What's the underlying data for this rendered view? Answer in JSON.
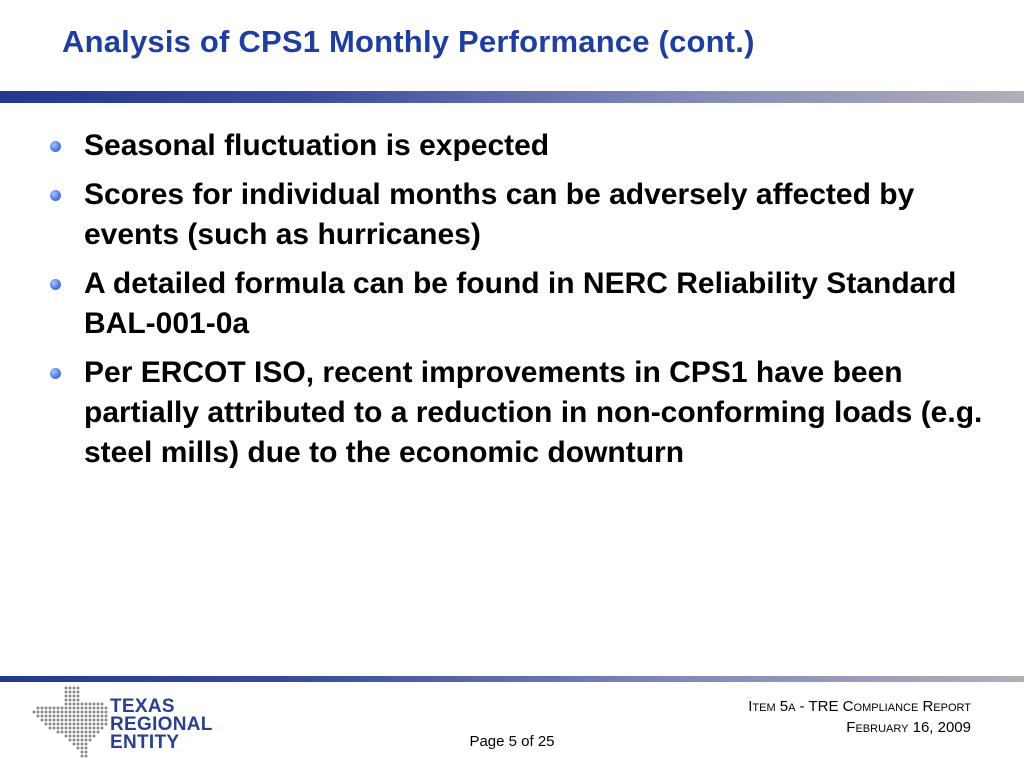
{
  "slide": {
    "title": "Analysis of CPS1 Monthly Performance (cont.)",
    "accent_color": "#1f3fa0",
    "bullet_color": "#4f7be8",
    "bullets": [
      "Seasonal fluctuation is expected",
      "Scores for individual months can be adversely affected by events (such as hurricanes)",
      "A detailed formula can be found in NERC Reliability Standard BAL-001-0a",
      "Per ERCOT ISO, recent improvements in CPS1 have been partially attributed to a reduction in non-conforming loads (e.g. steel mills) due to the economic downturn"
    ]
  },
  "footer": {
    "logo": {
      "line1": "TEXAS",
      "line2": "REGIONAL",
      "line3": "ENTITY",
      "icon": "texas-map-dots-icon"
    },
    "report_title": "Item 5a - TRE Compliance Report",
    "report_date": "February 16, 2009",
    "page_number": "Page 5 of 25"
  }
}
